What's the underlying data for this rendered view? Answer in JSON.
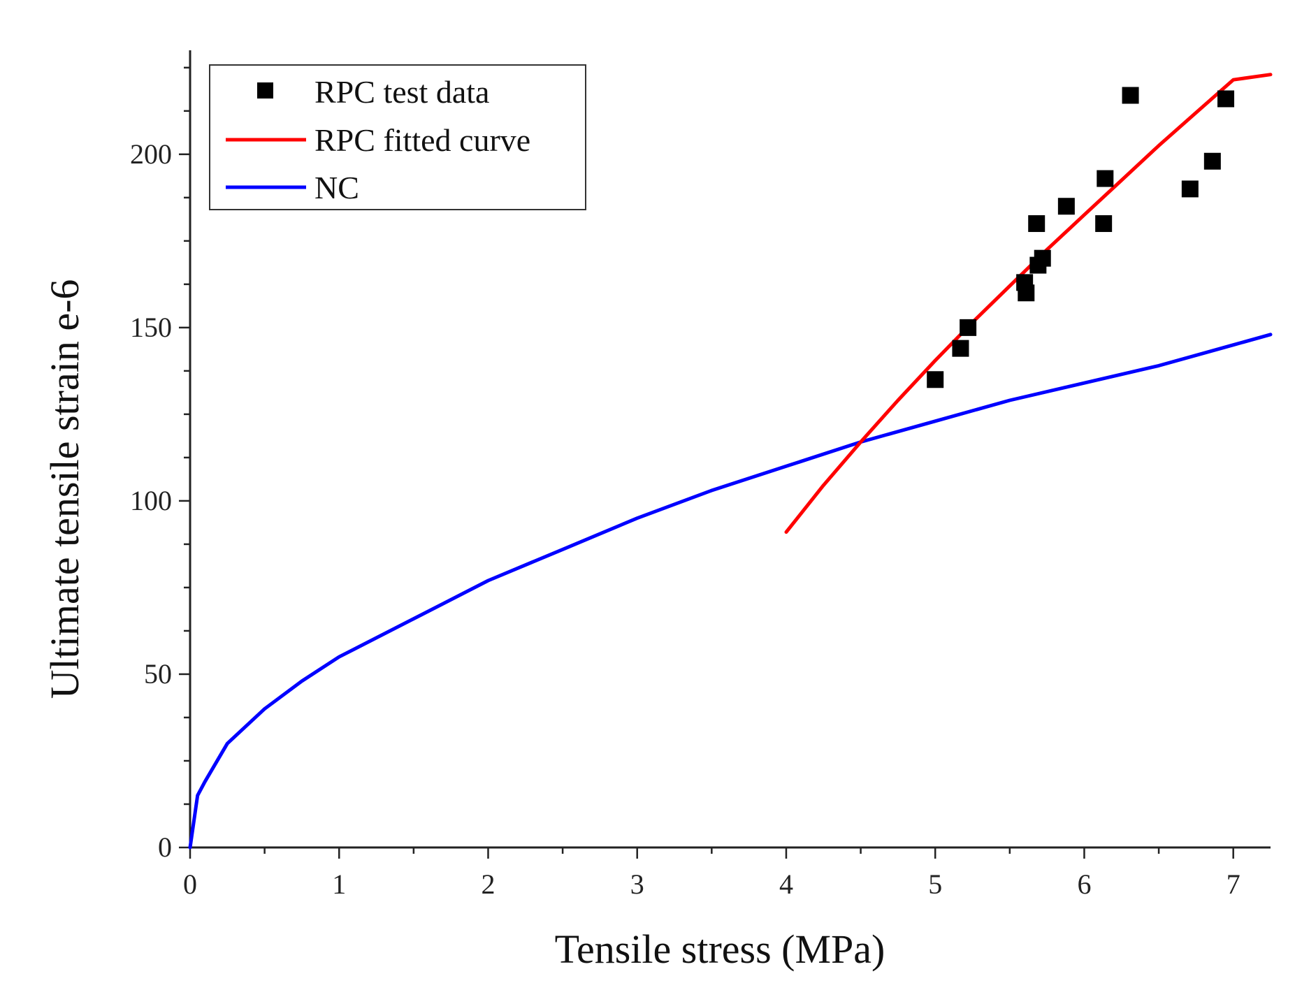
{
  "chart_data": {
    "type": "scatter",
    "title": "",
    "xlabel": "Tensile stress (MPa)",
    "ylabel": "Ultimate tensile strain  e-6",
    "xlim": [
      0,
      7.25
    ],
    "ylim": [
      0,
      230
    ],
    "x_ticks": [
      0,
      1,
      2,
      3,
      4,
      5,
      6,
      7
    ],
    "x_tick_labels": [
      "0",
      "1",
      "2",
      "3",
      "4",
      "5",
      "6",
      "7"
    ],
    "y_ticks": [
      0,
      50,
      100,
      150,
      200
    ],
    "y_tick_labels": [
      "0",
      "50",
      "100",
      "150",
      "200"
    ],
    "grid": false,
    "legend_position": "top-left",
    "series": [
      {
        "name": "RPC test data",
        "kind": "scatter",
        "marker": "square",
        "color": "#000000",
        "x": [
          5.0,
          5.17,
          5.22,
          5.6,
          5.61,
          5.68,
          5.69,
          5.72,
          5.88,
          6.13,
          6.14,
          6.31,
          6.71,
          6.86,
          6.95
        ],
        "y": [
          135,
          144,
          150,
          163,
          160,
          180,
          168,
          170,
          185,
          180,
          193,
          217,
          190,
          198,
          216
        ]
      },
      {
        "name": "RPC fitted curve",
        "kind": "line",
        "color": "#ff0000",
        "x": [
          4.0,
          4.25,
          4.5,
          4.75,
          5.0,
          5.25,
          5.5,
          5.75,
          6.0,
          6.25,
          6.5,
          6.75,
          7.0,
          7.25
        ],
        "y": [
          91,
          104.5,
          117,
          129,
          140.5,
          151.5,
          162,
          172.5,
          182.5,
          192.5,
          202.5,
          212,
          221.5,
          223
        ]
      },
      {
        "name": "NC",
        "kind": "line",
        "color": "#0000ff",
        "x": [
          0,
          0.05,
          0.1,
          0.25,
          0.5,
          0.75,
          1.0,
          1.5,
          2.0,
          2.5,
          3.0,
          3.5,
          4.0,
          4.5,
          5.0,
          5.5,
          6.0,
          6.5,
          7.0,
          7.25
        ],
        "y": [
          0,
          15,
          19,
          30,
          40,
          48,
          55,
          66,
          77,
          86,
          95,
          103,
          110,
          117,
          123,
          129,
          134,
          139,
          145,
          148
        ]
      }
    ]
  }
}
